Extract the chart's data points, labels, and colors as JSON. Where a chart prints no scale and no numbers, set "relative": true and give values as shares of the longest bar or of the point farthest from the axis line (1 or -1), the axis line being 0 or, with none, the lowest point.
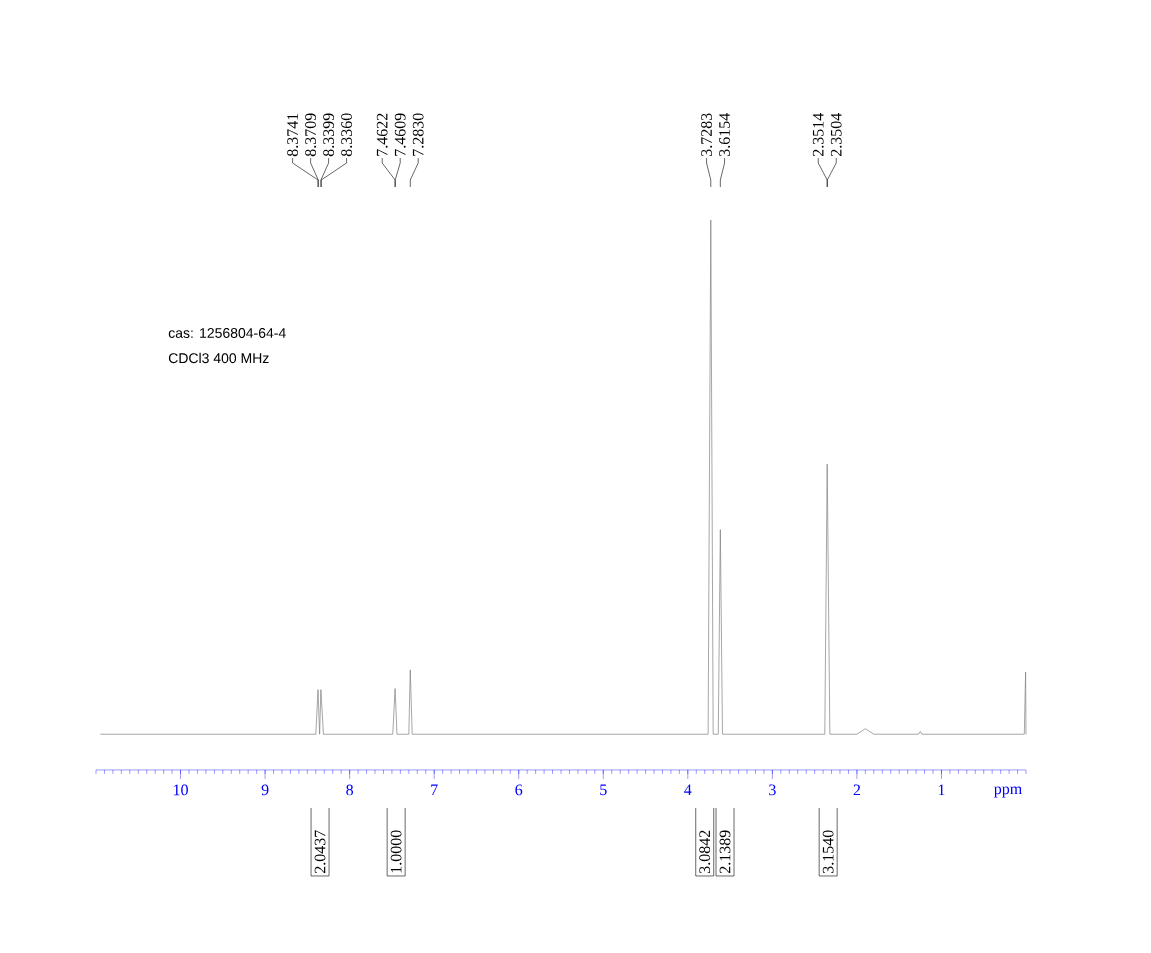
{
  "chart_data": {
    "type": "line",
    "relative": true,
    "xlabel": "ppm",
    "color": "#808080",
    "xlim": [
      11,
      0
    ],
    "xticks": [
      10,
      9,
      8,
      7,
      6,
      5,
      4,
      3,
      2,
      1
    ],
    "x": [
      10.95,
      8.4,
      8.3741,
      8.355,
      8.3399,
      8.31,
      7.49,
      7.4622,
      7.44,
      7.3,
      7.283,
      7.26,
      3.76,
      3.7283,
      3.7,
      3.64,
      3.6154,
      3.59,
      2.38,
      2.3514,
      2.32,
      2.0,
      1.9,
      1.8,
      1.27,
      1.25,
      1.23,
      0.02,
      0.005,
      0
    ],
    "values": [
      0.065,
      0.065,
      0.146,
      0.065,
      0.146,
      0.065,
      0.065,
      0.148,
      0.065,
      0.065,
      0.182,
      0.065,
      0.065,
      1,
      0.065,
      0.065,
      0.437,
      0.065,
      0.065,
      0.556,
      0.065,
      0.065,
      0.075,
      0.065,
      0.065,
      0.07,
      0.065,
      0.065,
      0.178,
      0.065
    ],
    "annotations": [
      "8.3741",
      "8.3709",
      "8.3399",
      "8.3360",
      "7.4622",
      "7.4609",
      "7.2830",
      "3.7283",
      "3.6154",
      "2.3514",
      "2.3504",
      "2.0437",
      "1.0000",
      "3.0842",
      "2.1389",
      "3.1540",
      "cas: 1256804-64-4",
      "CDCl3  400 MHz"
    ]
  }
}
